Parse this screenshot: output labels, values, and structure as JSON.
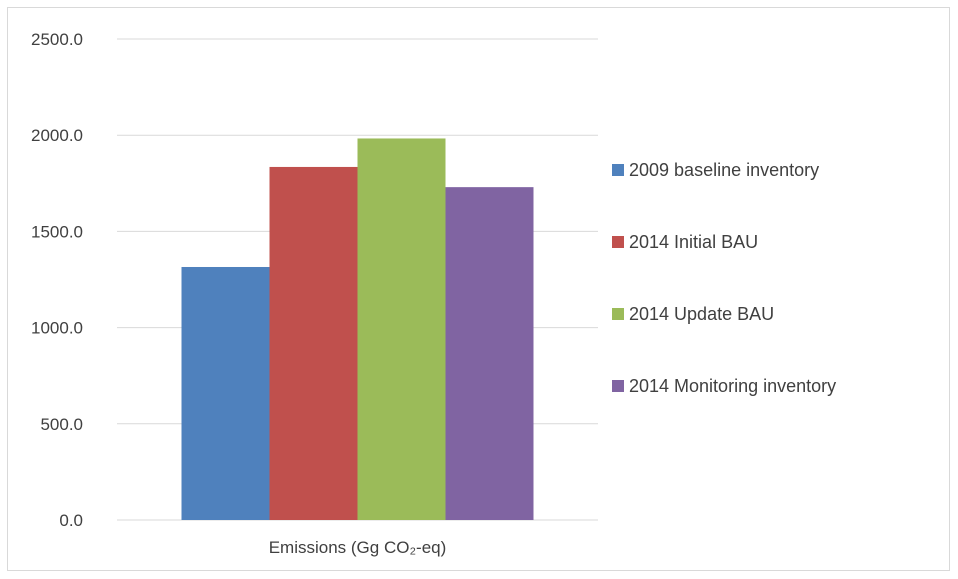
{
  "chart_data": {
    "type": "bar",
    "categories": [
      "Emissions (Gg CO₂-eq)"
    ],
    "series": [
      {
        "name": "2009 baseline inventory",
        "values": [
          1315
        ],
        "color": "#4f81bd"
      },
      {
        "name": "2014 Initial BAU",
        "values": [
          1835
        ],
        "color": "#c0504d"
      },
      {
        "name": "2014 Update BAU",
        "values": [
          1983
        ],
        "color": "#9bbb59"
      },
      {
        "name": "2014 Monitoring inventory",
        "values": [
          1730
        ],
        "color": "#8064a2"
      }
    ],
    "yticks": [
      "0.0",
      "500.0",
      "1000.0",
      "1500.0",
      "2000.0",
      "2500.0"
    ],
    "ylim": [
      0,
      2500
    ],
    "grid": true,
    "legend_position": "right"
  }
}
